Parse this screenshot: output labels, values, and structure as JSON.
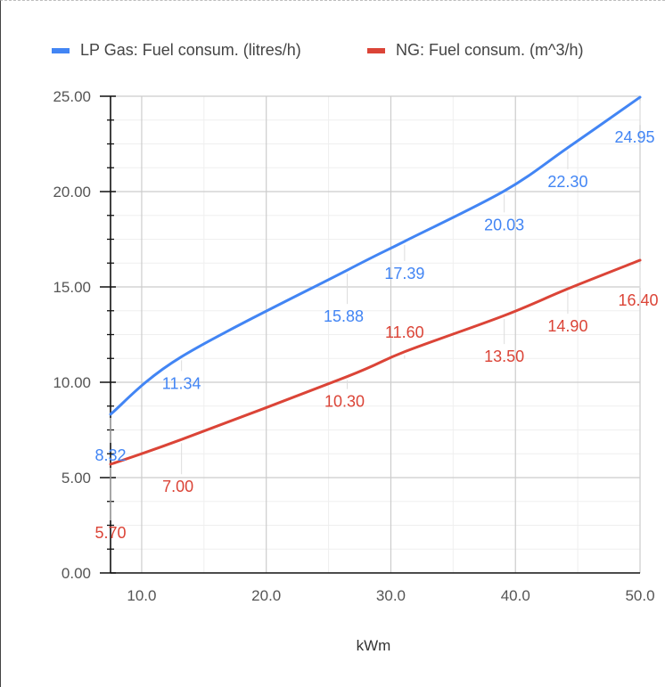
{
  "chart_data": {
    "type": "line",
    "title": "",
    "xlabel": "kWm",
    "ylabel": "",
    "xlim": [
      7.5,
      50
    ],
    "ylim": [
      0,
      25
    ],
    "x_ticks": [
      "10.0",
      "20.0",
      "30.0",
      "40.0",
      "50.0"
    ],
    "y_ticks": [
      "0.00",
      "5.00",
      "10.00",
      "15.00",
      "20.00",
      "25.00"
    ],
    "grid": true,
    "legend_position": "top",
    "series": [
      {
        "name": "LP Gas: Fuel consum. (litres/h)",
        "color": "#4285f4",
        "x": [
          7.5,
          13.2,
          26.5,
          31.1,
          39.1,
          44.2,
          50.0
        ],
        "y": [
          8.32,
          11.34,
          15.88,
          17.39,
          20.03,
          22.3,
          24.95
        ],
        "labels": [
          "8.32",
          "11.34",
          "15.88",
          "17.39",
          "20.03",
          "22.30",
          "24.95"
        ]
      },
      {
        "name": "NG: Fuel consum.   (m^3/h)",
        "color": "#db4437",
        "x": [
          7.5,
          13.2,
          26.5,
          31.1,
          39.1,
          44.2,
          50.0
        ],
        "y": [
          5.7,
          7.0,
          10.3,
          11.6,
          13.5,
          14.9,
          16.4
        ],
        "labels": [
          "5.70",
          "7.00",
          "10.30",
          "11.60",
          "13.50",
          "14.90",
          "16.40"
        ]
      }
    ]
  }
}
